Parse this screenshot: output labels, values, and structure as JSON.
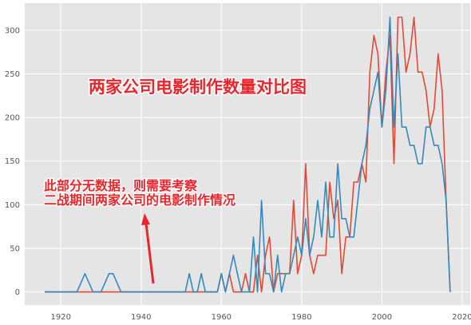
{
  "chart_data": {
    "type": "line",
    "title": "",
    "xlabel": "",
    "ylabel": "",
    "xlim": [
      1911,
      2022
    ],
    "ylim": [
      -15,
      331
    ],
    "xticks": [
      1920,
      1940,
      1960,
      1980,
      2000,
      2020
    ],
    "yticks": [
      0,
      50,
      100,
      150,
      200,
      250,
      300
    ],
    "grid": true,
    "colors": {
      "plot_bg": "#e5e5e5",
      "grid": "#ffffff",
      "series_red": "#e24a33",
      "series_blue": "#348abd",
      "annotation": "#e8262c"
    },
    "series": [
      {
        "color": "#e24a33",
        "x": [
          1916,
          1925,
          1926,
          1934,
          1935,
          1958,
          1959,
          1960,
          1961,
          1962,
          1963,
          1964,
          1965,
          1966,
          1967,
          1968,
          1969,
          1970,
          1971,
          1972,
          1973,
          1974,
          1975,
          1976,
          1977,
          1978,
          1979,
          1980,
          1981,
          1982,
          1983,
          1984,
          1985,
          1986,
          1987,
          1988,
          1989,
          1990,
          1991,
          1992,
          1993,
          1994,
          1995,
          1996,
          1997,
          1998,
          1999,
          2000,
          2001,
          2002,
          2003,
          2004,
          2005,
          2006,
          2007,
          2008,
          2009,
          2010,
          2011,
          2012,
          2013,
          2014,
          2015,
          2016,
          2017
        ],
        "y": [
          0,
          0,
          0,
          0,
          0,
          0,
          0,
          21,
          0,
          21,
          0,
          0,
          0,
          21,
          0,
          0,
          42,
          0,
          42,
          63,
          0,
          21,
          21,
          21,
          21,
          105,
          21,
          42,
          147,
          42,
          21,
          42,
          42,
          42,
          126,
          84,
          105,
          21,
          63,
          63,
          126,
          126,
          147,
          126,
          252,
          294,
          273,
          189,
          252,
          294,
          147,
          315,
          315,
          252,
          273,
          315,
          252,
          252,
          231,
          189,
          210,
          273,
          231,
          105,
          0
        ]
      },
      {
        "color": "#348abd",
        "x": [
          1916,
          1924,
          1926,
          1928,
          1930,
          1932,
          1933,
          1935,
          1940,
          1950,
          1951,
          1952,
          1953,
          1954,
          1955,
          1956,
          1957,
          1958,
          1959,
          1960,
          1961,
          1962,
          1963,
          1964,
          1965,
          1966,
          1967,
          1968,
          1969,
          1970,
          1971,
          1972,
          1973,
          1974,
          1975,
          1976,
          1977,
          1978,
          1979,
          1980,
          1981,
          1982,
          1983,
          1984,
          1985,
          1986,
          1987,
          1988,
          1989,
          1990,
          1991,
          1992,
          1993,
          1994,
          1995,
          1996,
          1997,
          1998,
          1999,
          2000,
          2001,
          2002,
          2003,
          2004,
          2005,
          2006,
          2007,
          2008,
          2009,
          2010,
          2011,
          2012,
          2013,
          2014,
          2015,
          2016,
          2017
        ],
        "y": [
          0,
          0,
          21,
          0,
          0,
          21,
          21,
          0,
          0,
          0,
          0,
          21,
          0,
          0,
          21,
          0,
          0,
          0,
          0,
          21,
          0,
          21,
          42,
          21,
          0,
          0,
          0,
          63,
          0,
          105,
          21,
          21,
          0,
          42,
          0,
          21,
          21,
          42,
          63,
          42,
          84,
          42,
          63,
          105,
          63,
          126,
          63,
          63,
          147,
          84,
          84,
          63,
          63,
          105,
          147,
          168,
          210,
          231,
          252,
          189,
          231,
          315,
          189,
          273,
          189,
          189,
          168,
          168,
          147,
          147,
          189,
          189,
          168,
          168,
          147,
          105,
          0
        ]
      }
    ],
    "annotations": {
      "title_text": "两家公司电影制作数量对比图",
      "note_line1": "此部分无数据，则需要考察",
      "note_line2": "二战期间两家公司的电影制作情况"
    }
  }
}
